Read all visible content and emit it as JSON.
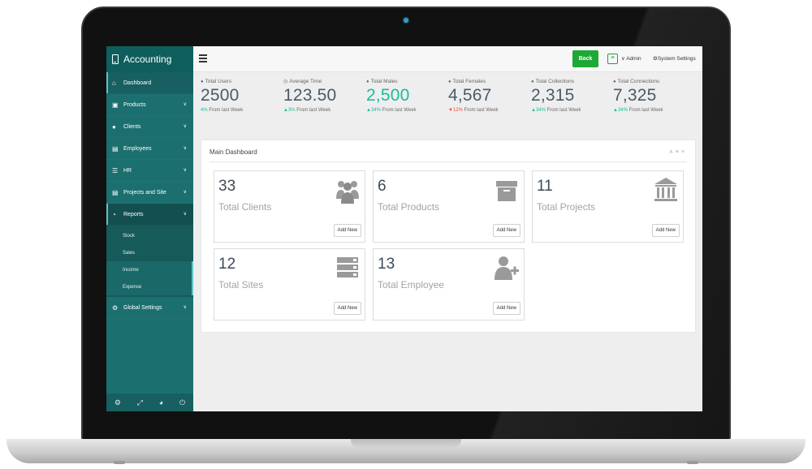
{
  "app": {
    "title": "Accounting"
  },
  "sidebar": {
    "items": [
      {
        "label": "Dashboard",
        "icon": "home-icon"
      },
      {
        "label": "Products",
        "icon": "truck-icon"
      },
      {
        "label": "Clients",
        "icon": "users-icon"
      },
      {
        "label": "Employees",
        "icon": "id-card-icon"
      },
      {
        "label": "HR",
        "icon": "list-icon"
      },
      {
        "label": "Projects and Site",
        "icon": "briefcase-icon"
      },
      {
        "label": "Reports",
        "icon": "pie-chart-icon"
      },
      {
        "label": "Global Settings",
        "icon": "gear-icon"
      }
    ],
    "report_sub_items": [
      "Stock",
      "Sales",
      "Income",
      "Expense"
    ],
    "footer_icons": [
      "settings-icon",
      "fullscreen-icon",
      "eye-off-icon",
      "power-icon"
    ]
  },
  "topbar": {
    "back_label": "Back",
    "admin_label": "Admin",
    "settings_label": "System Settings"
  },
  "stats": [
    {
      "label": "Total Users",
      "value": "2500",
      "change": "4%",
      "suffix": "From last Week",
      "icon": "user-icon"
    },
    {
      "label": "Average Time",
      "value": "123.50",
      "change": "3%",
      "suffix": "From last Week",
      "icon": "clock-icon"
    },
    {
      "label": "Total Males",
      "value": "2,500",
      "change": "34%",
      "suffix": "From last Week",
      "icon": "user-icon"
    },
    {
      "label": "Total Females",
      "value": "4,567",
      "change": "12%",
      "suffix": "From last Week",
      "icon": "user-icon"
    },
    {
      "label": "Total Collections",
      "value": "2,315",
      "change": "34%",
      "suffix": "From last Week",
      "icon": "user-icon"
    },
    {
      "label": "Total Connections",
      "value": "7,325",
      "change": "34%",
      "suffix": "From last Week",
      "icon": "user-icon"
    }
  ],
  "colors": {
    "accent": "#1c6f6f",
    "positive": "#1abc9c",
    "negative": "#e74c3c",
    "back_button": "#1ea836"
  },
  "panel": {
    "title": "Main Dashboard",
    "cards": [
      {
        "value": "33",
        "label": "Total Clients",
        "button": "Add New",
        "icon": "users-group-icon"
      },
      {
        "value": "6",
        "label": "Total Products",
        "button": "Add New",
        "icon": "archive-box-icon"
      },
      {
        "value": "11",
        "label": "Total Projects",
        "button": "Add New",
        "icon": "bank-icon"
      },
      {
        "value": "12",
        "label": "Total Sites",
        "button": "Add New",
        "icon": "server-icon"
      },
      {
        "value": "13",
        "label": "Total Employee",
        "button": "Add New",
        "icon": "user-add-icon"
      }
    ]
  }
}
